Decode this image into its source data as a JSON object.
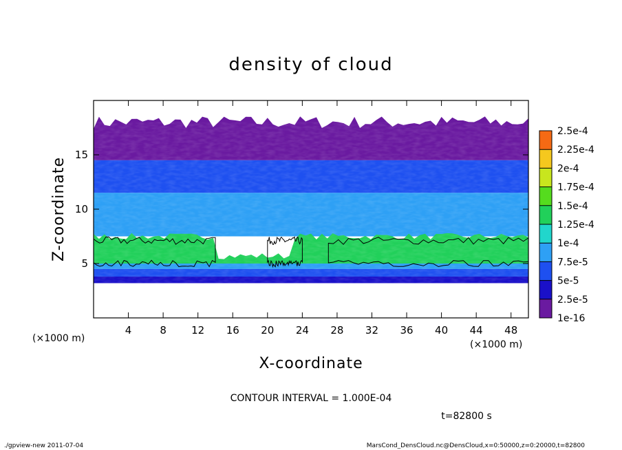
{
  "chart_data": {
    "type": "heatmap",
    "title": "density of cloud",
    "xlabel": "X-coordinate",
    "ylabel": "Z-coordinate",
    "x_unit": "(×1000 m)",
    "y_unit": "(×1000 m)",
    "xlim": [
      0,
      50
    ],
    "ylim": [
      0,
      20
    ],
    "x_ticks": [
      4,
      8,
      12,
      16,
      20,
      24,
      28,
      32,
      36,
      40,
      44,
      48
    ],
    "y_ticks": [
      5,
      10,
      15
    ],
    "colorbar": {
      "labels": [
        "1e-16",
        "2.5e-5",
        "5e-5",
        "7.5e-5",
        "1e-4",
        "1.25e-4",
        "1.5e-4",
        "1.75e-4",
        "2e-4",
        "2.25e-4",
        "2.5e-4"
      ],
      "colors": [
        "#6a1aa0",
        "#1a10c8",
        "#1e50f0",
        "#2ea0f5",
        "#21d6cc",
        "#21d05a",
        "#55dc1e",
        "#c8e61e",
        "#f5c81e",
        "#f56a14",
        "#f0281e",
        "#f07878",
        "#f5a8a8"
      ]
    },
    "contour_levels": [
      0.0001
    ],
    "layers": [
      {
        "z_bottom": 3.2,
        "z_top": 3.8,
        "level_index": 1,
        "note": "dark blue floor"
      },
      {
        "z_bottom": 3.8,
        "z_top": 4.5,
        "level_index": 2
      },
      {
        "z_bottom": 4.5,
        "z_top": 5.0,
        "level_index": 3
      },
      {
        "z_bottom": 5.0,
        "z_top": 7.5,
        "level_index": 5,
        "note": "green band, patchy"
      },
      {
        "z_bottom": 7.5,
        "z_top": 11.5,
        "level_index": 3
      },
      {
        "z_bottom": 11.5,
        "z_top": 14.5,
        "level_index": 2
      },
      {
        "z_bottom": 14.5,
        "z_top": 18.0,
        "level_index": 0,
        "note": "purple top, ragged edge"
      }
    ],
    "contour_interval_text": "CONTOUR INTERVAL = 1.000E-04",
    "time_text": "t=82800 s"
  },
  "footer": {
    "left": "./gpview-new  2011-07-04",
    "right": "MarsCond_DensCloud.nc@DensCloud,x=0:50000,z=0:20000,t=82800"
  }
}
